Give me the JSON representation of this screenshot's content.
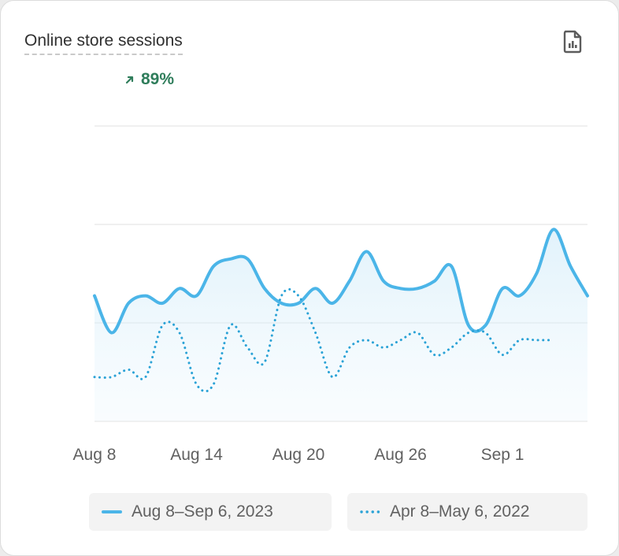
{
  "card": {
    "title": "Online store sessions",
    "change_text": "89%",
    "change_direction": "up",
    "change_color": "#2f7d5b",
    "export_icon": "file-chart-icon"
  },
  "chart_data": {
    "type": "line",
    "title": "Online store sessions",
    "x_tick_labels": [
      "Aug 8",
      "Aug 14",
      "Aug 20",
      "Aug 26",
      "Sep 1"
    ],
    "y_tick_labels": [],
    "grid": true,
    "ylim": [
      0,
      4
    ],
    "legend_placement": "bottom",
    "series": [
      {
        "name": "Aug 8–Sep 6, 2023",
        "style": "solid",
        "color": "#4bb5e8",
        "fill": true,
        "values": [
          1.7,
          1.2,
          1.6,
          1.7,
          1.6,
          1.8,
          1.7,
          2.1,
          2.2,
          2.2,
          1.8,
          1.6,
          1.6,
          1.8,
          1.6,
          1.9,
          2.3,
          1.9,
          1.8,
          1.8,
          1.9,
          2.1,
          1.3,
          1.3,
          1.8,
          1.7,
          2.0,
          2.6,
          2.1,
          1.7
        ]
      },
      {
        "name": "Apr 8–May 6, 2022",
        "style": "dotted",
        "color": "#2aa2d6",
        "fill": false,
        "values": [
          0.6,
          0.6,
          0.7,
          0.6,
          1.3,
          1.2,
          0.5,
          0.5,
          1.3,
          1.0,
          0.8,
          1.7,
          1.7,
          1.2,
          0.6,
          1.0,
          1.1,
          1.0,
          1.1,
          1.2,
          0.9,
          1.0,
          1.2,
          1.2,
          0.9,
          1.1,
          1.1,
          1.1
        ]
      }
    ]
  },
  "legend": {
    "items": [
      {
        "label": "Aug 8–Sep 6, 2023",
        "style": "solid"
      },
      {
        "label": "Apr 8–May 6, 2022",
        "style": "dotted"
      }
    ]
  }
}
